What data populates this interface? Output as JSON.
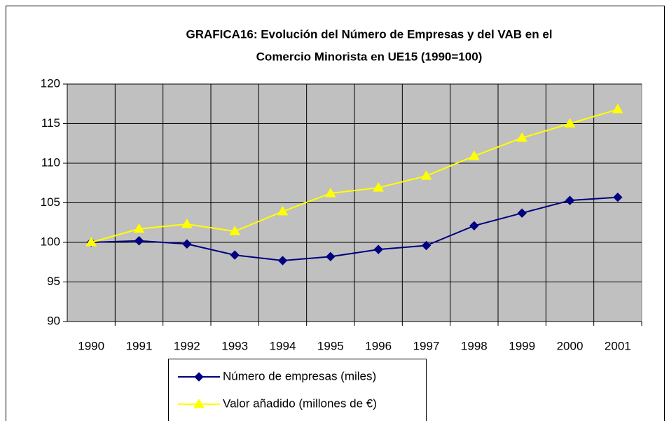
{
  "chart_data": {
    "type": "line",
    "title": [
      "GRAFICA16: Evolución del Número de Empresas y del VAB en el",
      "Comercio Minorista en UE15 (1990=100)"
    ],
    "categories": [
      "1990",
      "1991",
      "1992",
      "1993",
      "1994",
      "1995",
      "1996",
      "1997",
      "1998",
      "1999",
      "2000",
      "2001"
    ],
    "series": [
      {
        "name": "Número de empresas (miles)",
        "color": "#000080",
        "marker": "diamond",
        "values": [
          100,
          100.2,
          99.8,
          98.4,
          97.7,
          98.2,
          99.1,
          99.6,
          102.1,
          103.7,
          105.3,
          105.7
        ]
      },
      {
        "name": "Valor añadido (millones de €)",
        "color": "#ffff00",
        "marker": "triangle",
        "values": [
          100,
          101.7,
          102.3,
          101.4,
          103.9,
          106.2,
          106.9,
          108.4,
          110.9,
          113.2,
          115.0,
          116.8
        ]
      }
    ],
    "ylim": [
      90,
      120
    ],
    "yticks": [
      90,
      95,
      100,
      105,
      110,
      115,
      120
    ],
    "grid": true,
    "legend": "bottom"
  }
}
